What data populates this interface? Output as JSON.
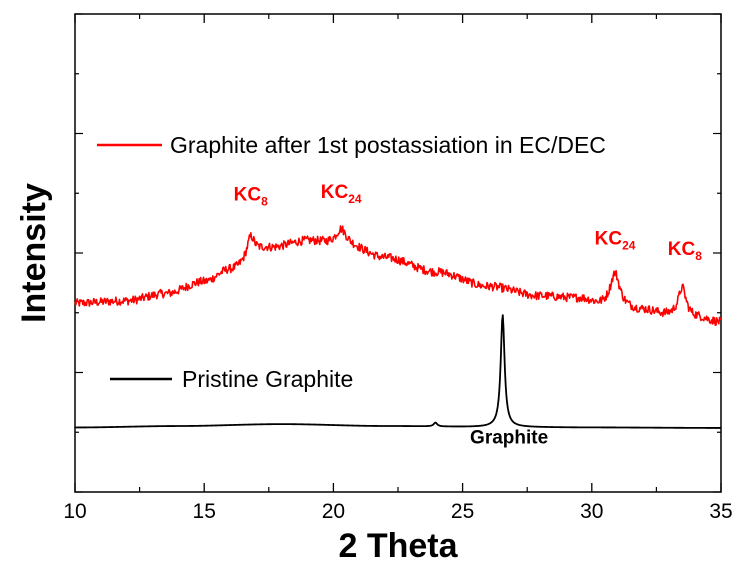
{
  "chart_data": {
    "type": "line",
    "xlabel": "2 Theta",
    "ylabel": "Intensity",
    "xlim": [
      10,
      35
    ],
    "ylim": [
      0,
      100
    ],
    "x_ticks": [
      "10",
      "15",
      "20",
      "25",
      "30",
      "35"
    ],
    "y_tick_labels_shown": false,
    "legend_placement": "inside, above each curve",
    "series": [
      {
        "name": "Graphite after 1st postassiation in EC/DEC",
        "color": "#ff0000",
        "baseline_points": [
          [
            10,
            39.5
          ],
          [
            12,
            40.0
          ],
          [
            13.5,
            41.5
          ],
          [
            15,
            44.0
          ],
          [
            16,
            46.5
          ],
          [
            17.5,
            51.0
          ],
          [
            19,
            52.5
          ],
          [
            20.5,
            51.5
          ],
          [
            22,
            49.0
          ],
          [
            24,
            46.0
          ],
          [
            26,
            43.0
          ],
          [
            28,
            41.0
          ],
          [
            29.5,
            40.5
          ],
          [
            30.5,
            39.0
          ],
          [
            32,
            38.0
          ],
          [
            33,
            37.0
          ],
          [
            34,
            36.5
          ],
          [
            35,
            35.5
          ]
        ],
        "peaks": [
          [
            16.8,
            4.5,
            0.18
          ],
          [
            20.3,
            3.5,
            0.25
          ],
          [
            30.9,
            7.0,
            0.22
          ],
          [
            33.5,
            6.0,
            0.18
          ]
        ],
        "noise_amplitude": 0.9
      },
      {
        "name": "Pristine Graphite",
        "color": "#000000",
        "baseline_points": [
          [
            10,
            13.5
          ],
          [
            14,
            13.8
          ],
          [
            18,
            14.2
          ],
          [
            22,
            13.8
          ],
          [
            26,
            13.6
          ],
          [
            30,
            13.5
          ],
          [
            35,
            13.4
          ]
        ],
        "peaks": [
          [
            23.95,
            0.8,
            0.08
          ],
          [
            26.55,
            23.5,
            0.09
          ]
        ],
        "noise_amplitude": 0.0
      }
    ],
    "annotations": [
      {
        "main": "KC",
        "sub": "8",
        "x": 16.8,
        "y": 61,
        "color": "#ff0000"
      },
      {
        "main": "KC",
        "sub": "24",
        "x": 20.3,
        "y": 61.5,
        "color": "#ff0000"
      },
      {
        "main": "KC",
        "sub": "24",
        "x": 30.9,
        "y": 51.8,
        "color": "#ff0000"
      },
      {
        "main": "KC",
        "sub": "8",
        "x": 33.6,
        "y": 49.6,
        "color": "#ff0000"
      },
      {
        "main": "Graphite",
        "sub": "",
        "x": 26.8,
        "y": 10.1,
        "color": "#000000"
      }
    ]
  }
}
